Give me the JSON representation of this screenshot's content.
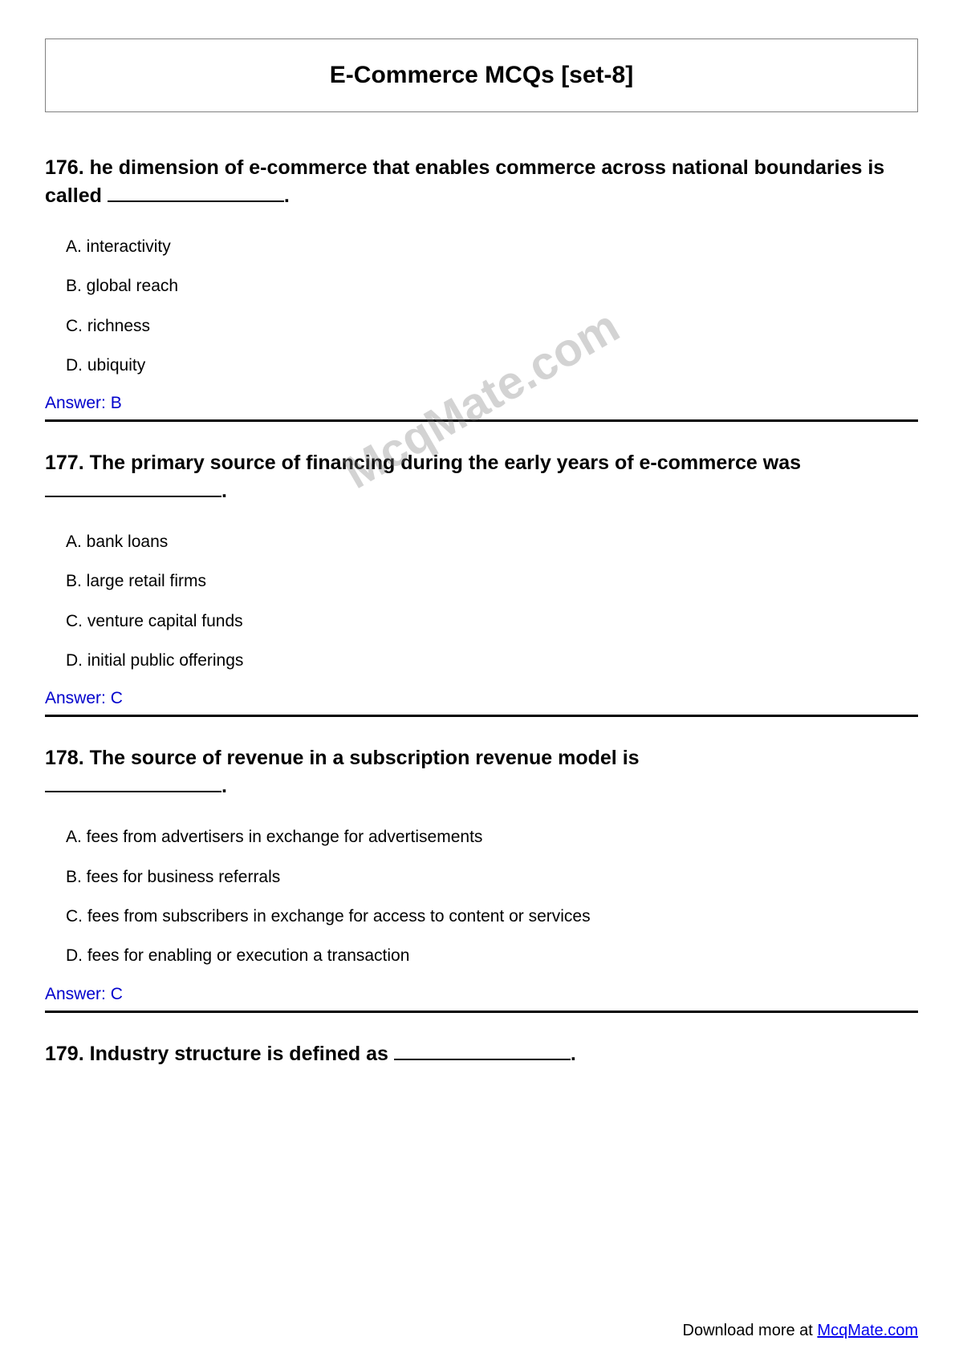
{
  "title": "E-Commerce MCQs [set-8]",
  "watermark": "McqMate.com",
  "answer_prefix": "Answer: ",
  "questions": [
    {
      "number": "176",
      "text_before": "he dimension of e-commerce that enables commerce across national boundaries is called ",
      "text_after": ".",
      "options": {
        "a": "A. interactivity",
        "b": "B. global reach",
        "c": "C. richness",
        "d": "D. ubiquity"
      },
      "answer": "B"
    },
    {
      "number": "177",
      "text_before": "The primary source of financing during the early years of e-commerce was ",
      "text_after": ".",
      "options": {
        "a": "A. bank loans",
        "b": "B. large retail firms",
        "c": "C. venture capital funds",
        "d": "D. initial public offerings"
      },
      "answer": "C"
    },
    {
      "number": "178",
      "text_before": "The source of revenue in a subscription revenue model is ",
      "text_after": ".",
      "options": {
        "a": "A. fees from advertisers in exchange for advertisements",
        "b": "B. fees for business referrals",
        "c": "C. fees from subscribers in exchange for access to content or services",
        "d": "D. fees for enabling or execution a transaction"
      },
      "answer": "C"
    },
    {
      "number": "179",
      "text_before": "Industry structure is defined as ",
      "text_after": ".",
      "options": null,
      "answer": null
    }
  ],
  "footer": {
    "text": "Download more at ",
    "link_text": "McqMate.com"
  }
}
